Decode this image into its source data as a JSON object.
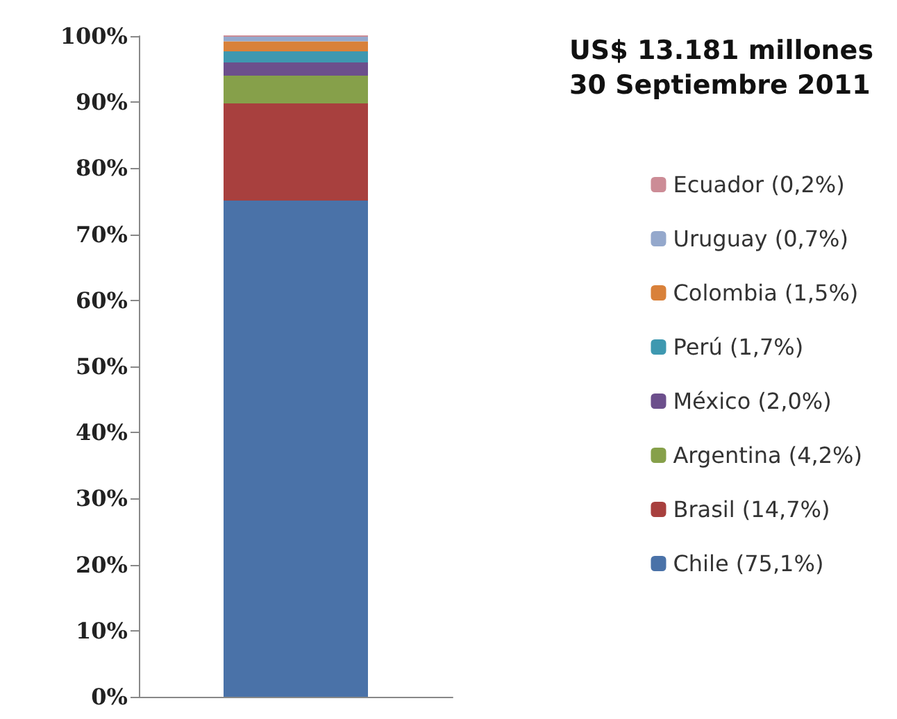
{
  "chart_data": {
    "type": "bar",
    "title": "US$ 13.181 millones",
    "subtitle": "30 Septiembre 2011",
    "stacked": true,
    "categories": [
      null
    ],
    "series": [
      {
        "name": "Chile (75,1%)",
        "color": "#4a72a8",
        "values": [
          75.1
        ]
      },
      {
        "name": "Brasil (14,7%)",
        "color": "#a8403e",
        "values": [
          14.7
        ]
      },
      {
        "name": "Argentina (4,2%)",
        "color": "#86a04a",
        "values": [
          4.2
        ]
      },
      {
        "name": "México (2,0%)",
        "color": "#6c4f8c",
        "values": [
          2.0
        ]
      },
      {
        "name": "Perú (1,7%)",
        "color": "#3e98b0",
        "values": [
          1.7
        ]
      },
      {
        "name": "Colombia (1,5%)",
        "color": "#d9813a",
        "values": [
          1.5
        ]
      },
      {
        "name": "Uruguay (0,7%)",
        "color": "#94a8cc",
        "values": [
          0.7
        ]
      },
      {
        "name": "Ecuador (0,2%)",
        "color": "#cc8c96",
        "values": [
          0.2
        ]
      }
    ],
    "ylim": [
      0,
      100
    ],
    "yticks": [
      {
        "value": 0,
        "label": "0%"
      },
      {
        "value": 10,
        "label": "10%"
      },
      {
        "value": 20,
        "label": "20%"
      },
      {
        "value": 30,
        "label": "30%"
      },
      {
        "value": 40,
        "label": "40%"
      },
      {
        "value": 50,
        "label": "50%"
      },
      {
        "value": 60,
        "label": "60%"
      },
      {
        "value": 70,
        "label": "70%"
      },
      {
        "value": 80,
        "label": "80%"
      },
      {
        "value": 90,
        "label": "90%"
      },
      {
        "value": 100,
        "label": "100%"
      }
    ],
    "grid": false,
    "legend": "right"
  }
}
